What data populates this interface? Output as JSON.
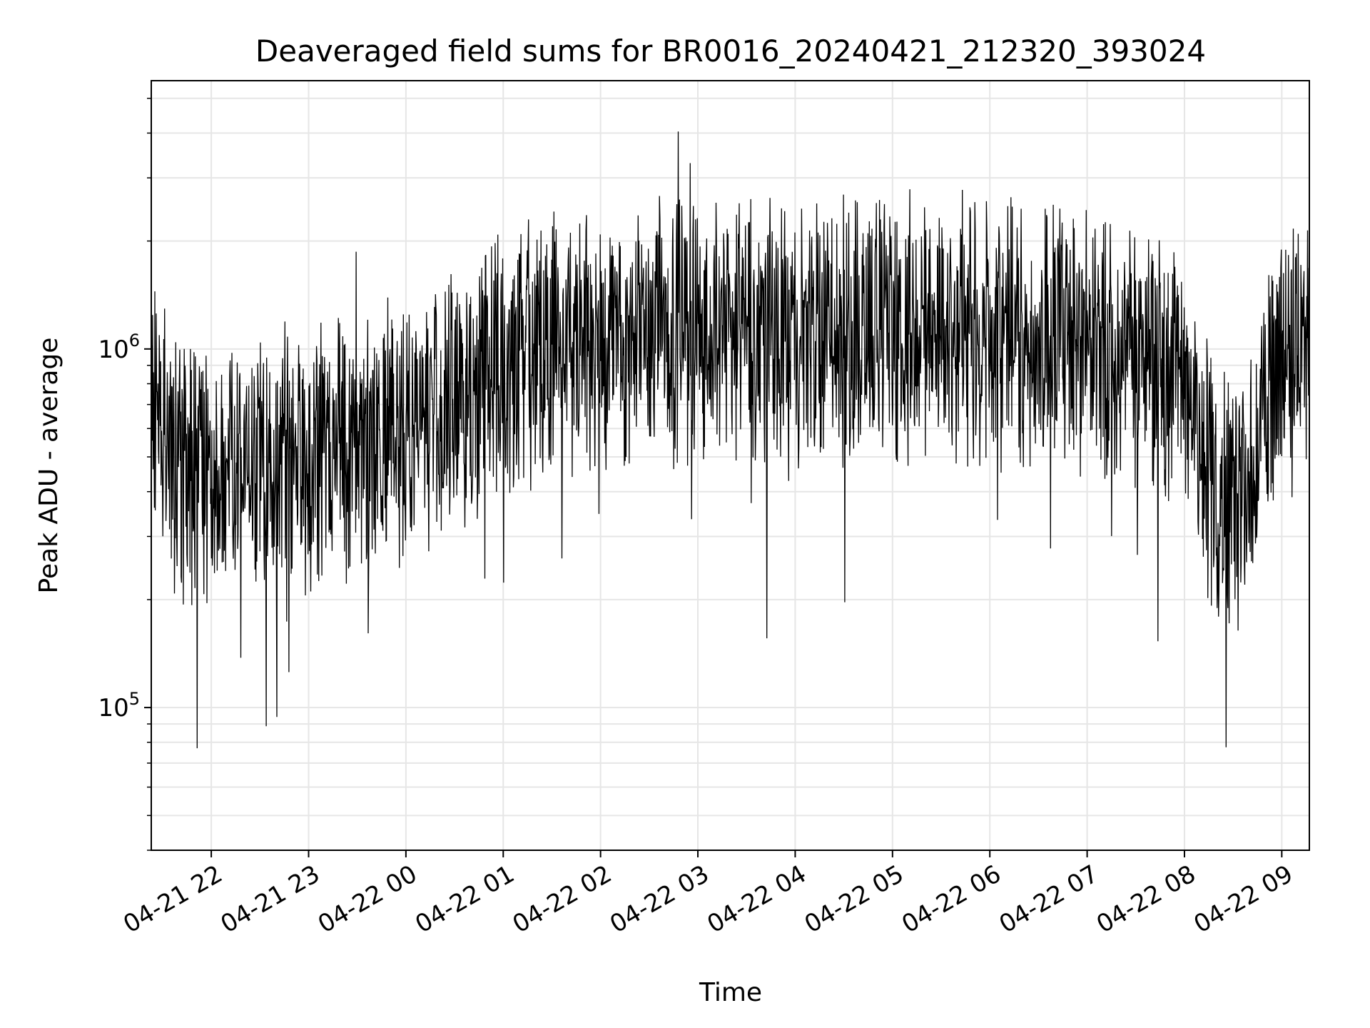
{
  "chart_data": {
    "type": "line",
    "title": "Deaveraged field sums for BR0016_20240421_212320_393024",
    "xlabel": "Time",
    "ylabel": "Peak ADU - average",
    "y_scale": "log",
    "ylim": [
      40000,
      5600000
    ],
    "y_major_ticks": [
      {
        "value": 100000,
        "base": "10",
        "exp": "5"
      },
      {
        "value": 1000000,
        "base": "10",
        "exp": "6"
      }
    ],
    "xlim": [
      "2024-04-21 21:23",
      "2024-04-22 09:17"
    ],
    "x_ticks": [
      {
        "value": "2024-04-21 22:00",
        "label": "04-21 22"
      },
      {
        "value": "2024-04-21 23:00",
        "label": "04-21 23"
      },
      {
        "value": "2024-04-22 00:00",
        "label": "04-22 00"
      },
      {
        "value": "2024-04-22 01:00",
        "label": "04-22 01"
      },
      {
        "value": "2024-04-22 02:00",
        "label": "04-22 02"
      },
      {
        "value": "2024-04-22 03:00",
        "label": "04-22 03"
      },
      {
        "value": "2024-04-22 04:00",
        "label": "04-22 04"
      },
      {
        "value": "2024-04-22 05:00",
        "label": "04-22 05"
      },
      {
        "value": "2024-04-22 06:00",
        "label": "04-22 06"
      },
      {
        "value": "2024-04-22 07:00",
        "label": "04-22 07"
      },
      {
        "value": "2024-04-22 08:00",
        "label": "04-22 08"
      },
      {
        "value": "2024-04-22 09:00",
        "label": "04-22 09"
      }
    ],
    "grid": true,
    "line_color": "#000000",
    "grid_color": "#e6e6e6",
    "series": [
      {
        "x": [
          "2024-04-21 21:23",
          "2024-04-21 21:40",
          "2024-04-21 22:00",
          "2024-04-21 22:20",
          "2024-04-21 22:40",
          "2024-04-21 23:00",
          "2024-04-21 23:20",
          "2024-04-21 23:40",
          "2024-04-22 00:00",
          "2024-04-22 00:20",
          "2024-04-22 00:40",
          "2024-04-22 01:00",
          "2024-04-22 01:20",
          "2024-04-22 01:40",
          "2024-04-22 02:00",
          "2024-04-22 02:20",
          "2024-04-22 02:40",
          "2024-04-22 03:00",
          "2024-04-22 03:20",
          "2024-04-22 03:40",
          "2024-04-22 04:00",
          "2024-04-22 04:20",
          "2024-04-22 04:40",
          "2024-04-22 05:00",
          "2024-04-22 05:20",
          "2024-04-22 05:40",
          "2024-04-22 06:00",
          "2024-04-22 06:20",
          "2024-04-22 06:40",
          "2024-04-22 07:00",
          "2024-04-22 07:20",
          "2024-04-22 07:40",
          "2024-04-22 08:00",
          "2024-04-22 08:10",
          "2024-04-22 08:20",
          "2024-04-22 08:30",
          "2024-04-22 08:40",
          "2024-04-22 08:50",
          "2024-04-22 09:00",
          "2024-04-22 09:17"
        ],
        "y": [
          800000,
          450000,
          480000,
          500000,
          480000,
          470000,
          520000,
          550000,
          600000,
          650000,
          750000,
          900000,
          1000000,
          1050000,
          1080000,
          1100000,
          1120000,
          1150000,
          1100000,
          1080000,
          1100000,
          1150000,
          1120000,
          1150000,
          1100000,
          1120000,
          1100000,
          1080000,
          1100000,
          1050000,
          1000000,
          950000,
          850000,
          550000,
          400000,
          380000,
          450000,
          650000,
          1000000,
          1050000
        ]
      }
    ]
  }
}
